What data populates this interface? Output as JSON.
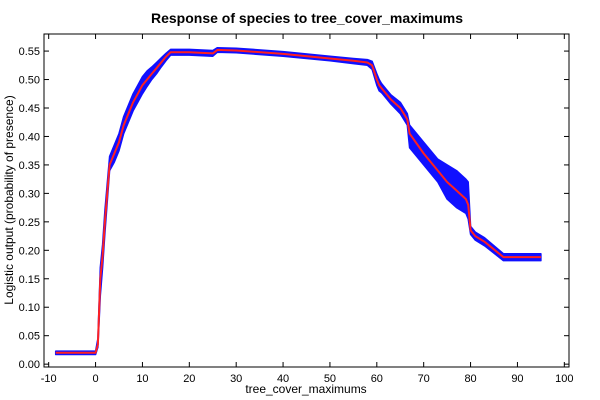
{
  "chart_data": {
    "type": "line",
    "title": "Response of species to tree_cover_maximums",
    "xlabel": "tree_cover_maximums",
    "ylabel": "Logistic output (probability of presence)",
    "xlim": [
      -11,
      101
    ],
    "ylim": [
      -0.005,
      0.58
    ],
    "xticks": [
      -10,
      0,
      10,
      20,
      30,
      40,
      50,
      60,
      70,
      80,
      90,
      100
    ],
    "yticks": [
      0.0,
      0.05,
      0.1,
      0.15,
      0.2,
      0.25,
      0.3,
      0.35,
      0.4,
      0.45,
      0.5,
      0.55
    ],
    "ytick_labels": [
      "0.00",
      "0.05",
      "0.10",
      "0.15",
      "0.20",
      "0.25",
      "0.30",
      "0.35",
      "0.40",
      "0.45",
      "0.50",
      "0.55"
    ],
    "grid": false,
    "series": [
      {
        "role": "mean",
        "color": "#ff2020",
        "x": [
          -8.5,
          0,
          0.5,
          1,
          1.5,
          2,
          3,
          4,
          5,
          6,
          7,
          8,
          9,
          10,
          11,
          12,
          13,
          14,
          15,
          16,
          20,
          25,
          26,
          30,
          40,
          50,
          55,
          58,
          59,
          60,
          60.5,
          61,
          62,
          63,
          65,
          66.5,
          67,
          70,
          73,
          75,
          77,
          79,
          79.5,
          80,
          81,
          83,
          87,
          90,
          95
        ],
        "y": [
          0.02,
          0.02,
          0.035,
          0.15,
          0.19,
          0.25,
          0.35,
          0.37,
          0.39,
          0.42,
          0.44,
          0.46,
          0.475,
          0.49,
          0.5,
          0.51,
          0.52,
          0.53,
          0.54,
          0.548,
          0.548,
          0.546,
          0.552,
          0.551,
          0.545,
          0.537,
          0.533,
          0.53,
          0.525,
          0.5,
          0.49,
          0.485,
          0.475,
          0.465,
          0.45,
          0.43,
          0.405,
          0.37,
          0.34,
          0.32,
          0.305,
          0.29,
          0.28,
          0.235,
          0.225,
          0.215,
          0.188,
          0.188,
          0.188
        ]
      }
    ],
    "band": {
      "role": "variability",
      "color": "#1010ff",
      "x": [
        -8.5,
        0,
        0.5,
        1,
        1.5,
        2,
        3,
        4,
        5,
        6,
        7,
        8,
        9,
        10,
        11,
        12,
        13,
        14,
        15,
        16,
        20,
        25,
        26,
        30,
        40,
        50,
        55,
        58,
        59,
        60,
        60.5,
        61,
        62,
        63,
        65,
        66.5,
        67,
        70,
        73,
        75,
        77,
        79,
        79.5,
        80,
        81,
        83,
        87,
        90,
        95
      ],
      "upper": [
        0.023,
        0.023,
        0.045,
        0.17,
        0.21,
        0.27,
        0.365,
        0.385,
        0.405,
        0.435,
        0.455,
        0.475,
        0.49,
        0.505,
        0.515,
        0.522,
        0.53,
        0.538,
        0.546,
        0.553,
        0.553,
        0.551,
        0.556,
        0.555,
        0.549,
        0.541,
        0.537,
        0.535,
        0.532,
        0.51,
        0.5,
        0.493,
        0.483,
        0.473,
        0.46,
        0.44,
        0.42,
        0.39,
        0.36,
        0.35,
        0.34,
        0.325,
        0.32,
        0.242,
        0.232,
        0.222,
        0.194,
        0.194,
        0.194
      ],
      "lower": [
        0.017,
        0.017,
        0.03,
        0.12,
        0.17,
        0.23,
        0.34,
        0.355,
        0.375,
        0.405,
        0.425,
        0.445,
        0.46,
        0.475,
        0.488,
        0.5,
        0.51,
        0.522,
        0.533,
        0.543,
        0.543,
        0.541,
        0.548,
        0.547,
        0.541,
        0.533,
        0.528,
        0.525,
        0.518,
        0.49,
        0.48,
        0.477,
        0.467,
        0.457,
        0.44,
        0.42,
        0.38,
        0.35,
        0.32,
        0.29,
        0.275,
        0.265,
        0.255,
        0.228,
        0.218,
        0.208,
        0.182,
        0.182,
        0.182
      ]
    }
  }
}
